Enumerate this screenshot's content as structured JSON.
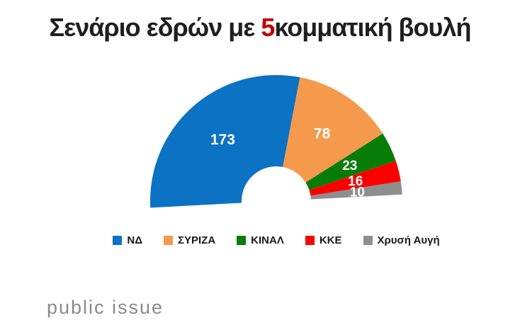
{
  "title": {
    "prefix": "Σενάριο εδρών με ",
    "highlight": "5",
    "suffix": "κομματική βουλή",
    "highlight_color": "#c00000"
  },
  "chart_data": {
    "type": "pie",
    "variant": "half-donut",
    "title": "Σενάριο εδρών με 5κομματική βουλή",
    "total_seats": 300,
    "categories": [
      "ΝΔ",
      "ΣΥΡΙΖΑ",
      "ΚΙΝΑΛ",
      "ΚΚΕ",
      "Χρυσή Αυγή"
    ],
    "values": [
      173,
      78,
      23,
      16,
      10
    ],
    "series": [
      {
        "name": "ΝΔ",
        "value": 173,
        "color": "#0b72c4"
      },
      {
        "name": "ΣΥΡΙΖΑ",
        "value": 78,
        "color": "#f5994d"
      },
      {
        "name": "ΚΙΝΑΛ",
        "value": 23,
        "color": "#077d07"
      },
      {
        "name": "ΚΚΕ",
        "value": 16,
        "color": "#fc0000"
      },
      {
        "name": "Χρυσή Αυγή",
        "value": 10,
        "color": "#8e8e8e"
      }
    ],
    "data_labels": "values-inside-white-bold",
    "start_angle_deg": 183,
    "sweep_deg": 180,
    "inner_radius_ratio": 0.28,
    "legend_position": "bottom",
    "grid": false
  },
  "footer": {
    "logo_text": "public issue",
    "logo_color": "#8a8a8a"
  }
}
